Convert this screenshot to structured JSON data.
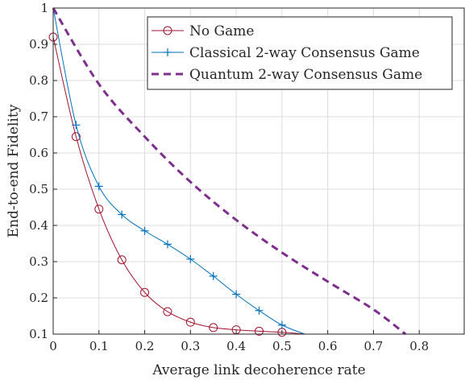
{
  "chart_data": {
    "type": "line",
    "xlabel": "Average link decoherence rate",
    "ylabel": "End-to-end Fidelity",
    "xlim": [
      0,
      0.9
    ],
    "ylim": [
      0.1,
      1
    ],
    "x_ticks": [
      "0",
      "0.1",
      "0.2",
      "0.3",
      "0.4",
      "0.5",
      "0.6",
      "0.7",
      "0.8"
    ],
    "y_ticks": [
      "0.1",
      "0.2",
      "0.3",
      "0.4",
      "0.5",
      "0.6",
      "0.7",
      "0.8",
      "0.9",
      "1"
    ],
    "grid": true,
    "legend_position": "top-right",
    "series": [
      {
        "name": "No Game",
        "color": "#A2142F",
        "line_style": "solid",
        "marker": "circle",
        "x": [
          0,
          0.05,
          0.1,
          0.15,
          0.2,
          0.25,
          0.3,
          0.35,
          0.4,
          0.45,
          0.5,
          0.55
        ],
        "y": [
          0.92,
          0.645,
          0.445,
          0.305,
          0.215,
          0.162,
          0.133,
          0.118,
          0.112,
          0.108,
          0.105,
          0.1
        ],
        "marker_x": [
          0,
          0.05,
          0.1,
          0.15,
          0.2,
          0.25,
          0.3,
          0.35,
          0.4,
          0.45,
          0.5
        ],
        "marker_y": [
          0.92,
          0.645,
          0.445,
          0.305,
          0.215,
          0.162,
          0.133,
          0.118,
          0.112,
          0.108,
          0.105
        ]
      },
      {
        "name": "Classical 2-way Consensus Game",
        "color": "#0072BD",
        "line_style": "solid",
        "marker": "plus",
        "x": [
          0,
          0.05,
          0.1,
          0.15,
          0.2,
          0.25,
          0.3,
          0.35,
          0.4,
          0.45,
          0.5,
          0.55
        ],
        "y": [
          1.0,
          0.677,
          0.508,
          0.43,
          0.385,
          0.348,
          0.307,
          0.26,
          0.21,
          0.165,
          0.125,
          0.1
        ],
        "marker_x": [
          0.05,
          0.1,
          0.15,
          0.2,
          0.25,
          0.3,
          0.35,
          0.4,
          0.45,
          0.5
        ],
        "marker_y": [
          0.677,
          0.508,
          0.43,
          0.385,
          0.348,
          0.307,
          0.26,
          0.21,
          0.165,
          0.125
        ]
      },
      {
        "name": "Quantum 2-way Consensus Game",
        "color": "#7E2F8E",
        "line_style": "dashed",
        "marker": "none",
        "x": [
          0,
          0.1,
          0.2,
          0.3,
          0.4,
          0.5,
          0.6,
          0.7,
          0.77
        ],
        "y": [
          1.0,
          0.79,
          0.645,
          0.52,
          0.415,
          0.325,
          0.245,
          0.168,
          0.1
        ],
        "marker_x": [],
        "marker_y": []
      }
    ]
  }
}
